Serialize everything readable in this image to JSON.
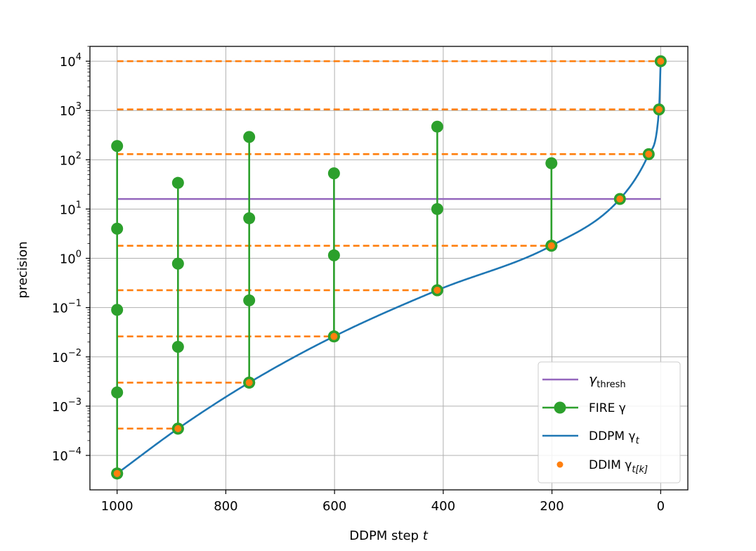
{
  "chart_data": {
    "type": "line",
    "title": "",
    "xlabel": "DDPM step",
    "xlabel_var": "t",
    "ylabel": "precision",
    "x_axis": {
      "inverted": true,
      "range": [
        1050,
        -50
      ],
      "ticks": [
        1000,
        800,
        600,
        400,
        200,
        0
      ],
      "tick_labels": [
        "1000",
        "800",
        "600",
        "400",
        "200",
        "0"
      ]
    },
    "y_axis": {
      "scale": "log",
      "range": [
        2e-05,
        20000
      ],
      "tick_exponents": [
        -4,
        -3,
        -2,
        -1,
        0,
        1,
        2,
        3,
        4
      ],
      "tick_base": "10"
    },
    "grid": true,
    "legend": {
      "location": "lower-right",
      "entries": [
        {
          "main": "γ",
          "sub": "thresh",
          "italic_sub": false
        },
        {
          "main": "FIRE γ",
          "sub": "",
          "italic_sub": false
        },
        {
          "main": "DDPM γ",
          "sub": "t",
          "italic_sub": true
        },
        {
          "main": "DDIM γ",
          "sub": "t[k]",
          "italic_sub": true
        }
      ]
    },
    "series": [
      {
        "name": "γthresh",
        "kind": "hline",
        "color": "#9467bd",
        "y": 16,
        "x_range": [
          1000,
          0
        ]
      },
      {
        "name": "FIRE γ",
        "kind": "vertical-stems",
        "color": "#2ca02c",
        "stems": [
          {
            "x": 1000,
            "values": [
              4.3e-05,
              0.0019,
              0.09,
              4.0,
              190
            ]
          },
          {
            "x": 888,
            "values": [
              0.00035,
              0.016,
              0.78,
              34
            ]
          },
          {
            "x": 757,
            "values": [
              0.003,
              0.14,
              6.5,
              290
            ]
          },
          {
            "x": 601,
            "values": [
              0.026,
              1.15,
              53
            ]
          },
          {
            "x": 411,
            "values": [
              0.225,
              10,
              470
            ]
          },
          {
            "x": 201,
            "values": [
              1.8,
              85
            ]
          }
        ]
      },
      {
        "name": "DDPM γt",
        "kind": "curve",
        "color": "#1f77b4"
      },
      {
        "name": "DDIM γt[k]",
        "kind": "points",
        "color": "#ff7f0e",
        "points": [
          {
            "x": 1000,
            "y": 4.3e-05
          },
          {
            "x": 888,
            "y": 0.00035
          },
          {
            "x": 757,
            "y": 0.003
          },
          {
            "x": 601,
            "y": 0.026
          },
          {
            "x": 411,
            "y": 0.225
          },
          {
            "x": 201,
            "y": 1.8
          },
          {
            "x": 75,
            "y": 16
          },
          {
            "x": 22,
            "y": 130
          },
          {
            "x": 3,
            "y": 1050
          },
          {
            "x": 0,
            "y": 10000
          }
        ]
      },
      {
        "name": "DDIM levels",
        "kind": "dashed-hlines",
        "color": "#ff7f0e",
        "lines": [
          {
            "y": 10000,
            "x_from": 1000,
            "x_to": 0
          },
          {
            "y": 1050,
            "x_from": 1000,
            "x_to": 3
          },
          {
            "y": 130,
            "x_from": 1000,
            "x_to": 22
          },
          {
            "y": 1.8,
            "x_from": 1000,
            "x_to": 201
          },
          {
            "y": 0.225,
            "x_from": 1000,
            "x_to": 411
          },
          {
            "y": 0.026,
            "x_from": 1000,
            "x_to": 601
          },
          {
            "y": 0.003,
            "x_from": 1000,
            "x_to": 757
          },
          {
            "y": 0.00035,
            "x_from": 1000,
            "x_to": 888
          }
        ]
      }
    ]
  }
}
